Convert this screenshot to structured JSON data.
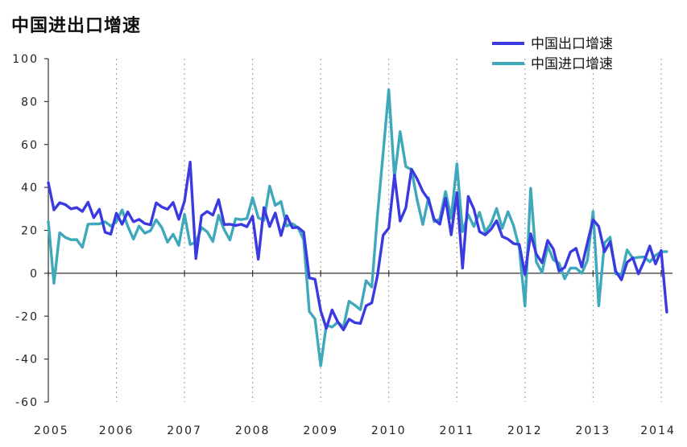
{
  "chart_data": {
    "type": "line",
    "title": "中国进出口增速",
    "xlabel": "",
    "ylabel": "",
    "ylim": [
      -60,
      100
    ],
    "yticks": [
      -60,
      -40,
      -20,
      0,
      20,
      40,
      60,
      80,
      100
    ],
    "ytick_labels": [
      "-60",
      "-40",
      "-20",
      "0",
      "20",
      "40",
      "60",
      "80",
      "100"
    ],
    "xlim": [
      2005.0,
      2014.1667
    ],
    "xticks": [
      2005,
      2006,
      2007,
      2008,
      2009,
      2010,
      2011,
      2012,
      2013,
      2014
    ],
    "xtick_labels": [
      "2005",
      "2006",
      "2007",
      "2008",
      "2009",
      "2010",
      "2011",
      "2012",
      "2013",
      "2014"
    ],
    "grid": "vertical dotted at year boundaries",
    "legend": "top-right",
    "series": [
      {
        "name": "中国出口增速",
        "color": "#3a3ae0",
        "x": [
          2005.0,
          2005.0833,
          2005.1667,
          2005.25,
          2005.3333,
          2005.4167,
          2005.5,
          2005.5833,
          2005.6667,
          2005.75,
          2005.8333,
          2005.9167,
          2006.0,
          2006.0833,
          2006.1667,
          2006.25,
          2006.3333,
          2006.4167,
          2006.5,
          2006.5833,
          2006.6667,
          2006.75,
          2006.8333,
          2006.9167,
          2007.0,
          2007.0833,
          2007.1667,
          2007.25,
          2007.3333,
          2007.4167,
          2007.5,
          2007.5833,
          2007.6667,
          2007.75,
          2007.8333,
          2007.9167,
          2008.0,
          2008.0833,
          2008.1667,
          2008.25,
          2008.3333,
          2008.4167,
          2008.5,
          2008.5833,
          2008.6667,
          2008.75,
          2008.8333,
          2008.9167,
          2009.0,
          2009.0833,
          2009.1667,
          2009.25,
          2009.3333,
          2009.4167,
          2009.5,
          2009.5833,
          2009.6667,
          2009.75,
          2009.8333,
          2009.9167,
          2010.0,
          2010.0833,
          2010.1667,
          2010.25,
          2010.3333,
          2010.4167,
          2010.5,
          2010.5833,
          2010.6667,
          2010.75,
          2010.8333,
          2010.9167,
          2011.0,
          2011.0833,
          2011.1667,
          2011.25,
          2011.3333,
          2011.4167,
          2011.5,
          2011.5833,
          2011.6667,
          2011.75,
          2011.8333,
          2011.9167,
          2012.0,
          2012.0833,
          2012.1667,
          2012.25,
          2012.3333,
          2012.4167,
          2012.5,
          2012.5833,
          2012.6667,
          2012.75,
          2012.8333,
          2012.9167,
          2013.0,
          2013.0833,
          2013.1667,
          2013.25,
          2013.3333,
          2013.4167,
          2013.5,
          2013.5833,
          2013.6667,
          2013.75,
          2013.8333,
          2013.9167,
          2014.0,
          2014.0833
        ],
        "y": [
          42.2,
          29.5,
          32.9,
          32.0,
          30.0,
          30.6,
          28.8,
          33.1,
          25.9,
          29.8,
          19.1,
          18.2,
          28.0,
          22.8,
          28.6,
          24.0,
          25.1,
          23.2,
          22.6,
          32.8,
          30.9,
          29.8,
          33.0,
          25.1,
          33.6,
          51.8,
          6.9,
          26.9,
          28.8,
          27.1,
          34.3,
          22.7,
          22.8,
          22.3,
          22.8,
          21.7,
          26.6,
          6.5,
          30.6,
          21.8,
          28.1,
          17.6,
          26.8,
          21.2,
          21.4,
          19.2,
          -2.2,
          -2.8,
          -17.5,
          -25.7,
          -17.1,
          -22.6,
          -26.4,
          -21.4,
          -23.0,
          -23.4,
          -15.2,
          -13.8,
          -1.2,
          17.7,
          21.0,
          45.7,
          24.3,
          30.5,
          48.5,
          43.9,
          38.1,
          34.4,
          25.1,
          22.9,
          34.9,
          17.9,
          37.6,
          2.4,
          35.8,
          29.9,
          19.4,
          17.9,
          20.4,
          24.5,
          17.1,
          15.9,
          13.8,
          13.4,
          -0.5,
          18.4,
          8.9,
          4.9,
          15.3,
          11.3,
          1.0,
          2.7,
          9.9,
          11.6,
          2.9,
          14.1,
          25.0,
          21.8,
          10.0,
          14.7,
          1.0,
          -3.1,
          5.1,
          7.2,
          -0.3,
          5.6,
          12.7,
          4.3,
          10.6,
          -18.1
        ]
      },
      {
        "name": "中国进口增速",
        "color": "#3fa9bb",
        "x": [
          2005.0,
          2005.0833,
          2005.1667,
          2005.25,
          2005.3333,
          2005.4167,
          2005.5,
          2005.5833,
          2005.6667,
          2005.75,
          2005.8333,
          2005.9167,
          2006.0,
          2006.0833,
          2006.1667,
          2006.25,
          2006.3333,
          2006.4167,
          2006.5,
          2006.5833,
          2006.6667,
          2006.75,
          2006.8333,
          2006.9167,
          2007.0,
          2007.0833,
          2007.1667,
          2007.25,
          2007.3333,
          2007.4167,
          2007.5,
          2007.5833,
          2007.6667,
          2007.75,
          2007.8333,
          2007.9167,
          2008.0,
          2008.0833,
          2008.1667,
          2008.25,
          2008.3333,
          2008.4167,
          2008.5,
          2008.5833,
          2008.6667,
          2008.75,
          2008.8333,
          2008.9167,
          2009.0,
          2009.0833,
          2009.1667,
          2009.25,
          2009.3333,
          2009.4167,
          2009.5,
          2009.5833,
          2009.6667,
          2009.75,
          2009.8333,
          2009.9167,
          2010.0,
          2010.0833,
          2010.1667,
          2010.25,
          2010.3333,
          2010.4167,
          2010.5,
          2010.5833,
          2010.6667,
          2010.75,
          2010.8333,
          2010.9167,
          2011.0,
          2011.0833,
          2011.1667,
          2011.25,
          2011.3333,
          2011.4167,
          2011.5,
          2011.5833,
          2011.6667,
          2011.75,
          2011.8333,
          2011.9167,
          2012.0,
          2012.0833,
          2012.1667,
          2012.25,
          2012.3333,
          2012.4167,
          2012.5,
          2012.5833,
          2012.6667,
          2012.75,
          2012.8333,
          2012.9167,
          2013.0,
          2013.0833,
          2013.1667,
          2013.25,
          2013.3333,
          2013.4167,
          2013.5,
          2013.5833,
          2013.6667,
          2013.75,
          2013.8333,
          2013.9167,
          2014.0,
          2014.0833
        ],
        "y": [
          24.0,
          -4.7,
          18.9,
          16.7,
          15.6,
          15.7,
          12.1,
          22.9,
          23.0,
          23.0,
          24.0,
          22.0,
          24.0,
          29.5,
          22.0,
          15.9,
          22.0,
          18.7,
          19.8,
          24.9,
          21.3,
          14.5,
          18.2,
          13.0,
          27.5,
          13.4,
          14.4,
          21.3,
          19.3,
          14.8,
          27.1,
          20.3,
          15.5,
          25.4,
          25.0,
          25.5,
          35.2,
          25.9,
          24.6,
          40.6,
          31.6,
          33.4,
          22.0,
          23.1,
          21.3,
          15.6,
          -17.9,
          -21.3,
          -43.1,
          -24.1,
          -25.1,
          -22.8,
          -25.2,
          -13.0,
          -14.9,
          -17.0,
          -3.5,
          -6.4,
          26.7,
          55.9,
          85.5,
          44.7,
          66.0,
          49.7,
          48.3,
          34.1,
          22.7,
          35.2,
          24.1,
          25.3,
          38.1,
          25.6,
          51.0,
          19.4,
          27.3,
          21.8,
          28.4,
          19.3,
          23.0,
          30.2,
          20.9,
          28.7,
          22.1,
          11.8,
          -15.3,
          39.6,
          5.3,
          0.3,
          12.7,
          6.3,
          4.7,
          -2.6,
          2.4,
          2.4,
          0.0,
          6.0,
          28.8,
          -15.2,
          14.1,
          16.8,
          -0.3,
          -0.7,
          10.9,
          7.0,
          7.4,
          7.6,
          5.3,
          8.3,
          10.0,
          10.1
        ]
      }
    ]
  }
}
